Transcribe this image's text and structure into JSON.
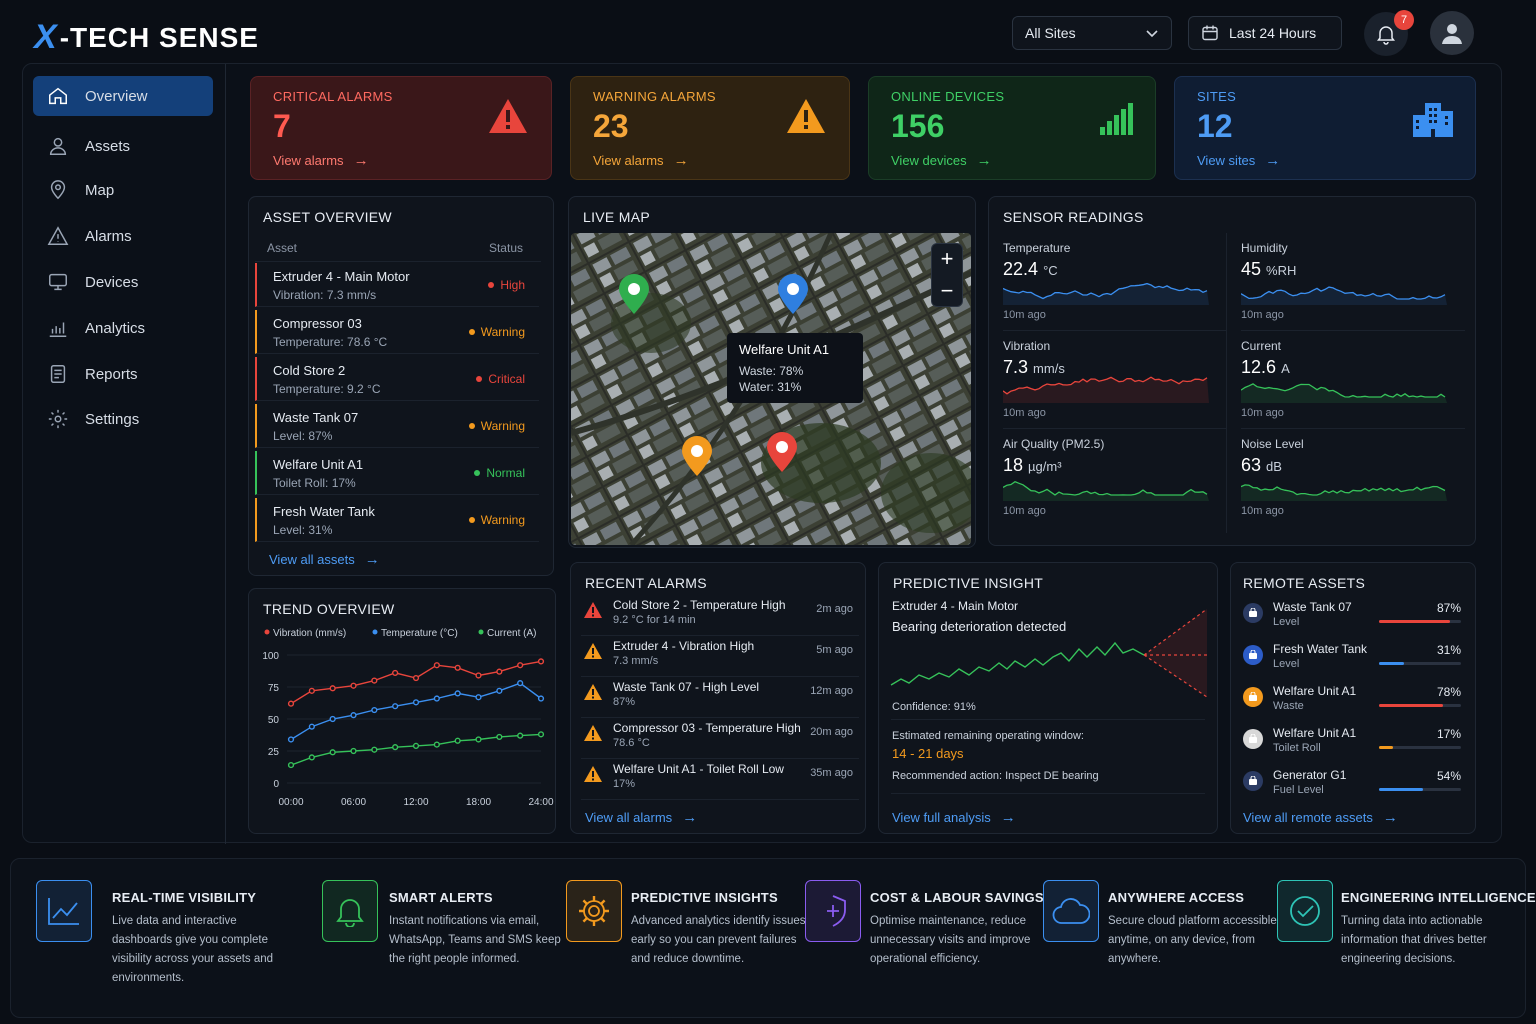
{
  "header": {
    "logo_x": "X",
    "logo_rest": "-TECH SENSE",
    "site_select": "All Sites",
    "time_range": "Last 24 Hours",
    "notif_count": "7"
  },
  "sidebar": {
    "items": [
      {
        "label": "Overview",
        "icon": "home-icon"
      },
      {
        "label": "Assets",
        "icon": "user-icon"
      },
      {
        "label": "Map",
        "icon": "map-pin-icon"
      },
      {
        "label": "Alarms",
        "icon": "warning-icon"
      },
      {
        "label": "Devices",
        "icon": "device-icon"
      },
      {
        "label": "Analytics",
        "icon": "analytics-icon"
      },
      {
        "label": "Reports",
        "icon": "report-icon"
      },
      {
        "label": "Settings",
        "icon": "gear-icon"
      }
    ]
  },
  "kpis": [
    {
      "label": "CRITICAL ALARMS",
      "value": "7",
      "link": "View alarms",
      "color": "#e8453c"
    },
    {
      "label": "WARNING ALARMS",
      "value": "23",
      "link": "View alarms",
      "color": "#f39a1e"
    },
    {
      "label": "ONLINE DEVICES",
      "value": "156",
      "link": "View devices",
      "color": "#36c25a"
    },
    {
      "label": "SITES",
      "value": "12",
      "link": "View sites",
      "color": "#3b8ff0"
    }
  ],
  "asset_overview": {
    "title": "ASSET OVERVIEW",
    "col_asset": "Asset",
    "col_status": "Status",
    "link": "View all assets",
    "rows": [
      {
        "name": "Extruder 4 - Main Motor",
        "sub": "Vibration: 7.3 mm/s",
        "status": "High",
        "color": "#e8453c"
      },
      {
        "name": "Compressor 03",
        "sub": "Temperature: 78.6 °C",
        "status": "Warning",
        "color": "#f39a1e"
      },
      {
        "name": "Cold Store 2",
        "sub": "Temperature: 9.2 °C",
        "status": "Critical",
        "color": "#e8453c"
      },
      {
        "name": "Waste Tank 07",
        "sub": "Level: 87%",
        "status": "Warning",
        "color": "#f39a1e"
      },
      {
        "name": "Welfare Unit A1",
        "sub": "Toilet Roll: 17%",
        "status": "Normal",
        "color": "#36c25a"
      },
      {
        "name": "Fresh Water Tank",
        "sub": "Level: 31%",
        "status": "Warning",
        "color": "#f39a1e"
      }
    ]
  },
  "live_map": {
    "title": "LIVE MAP",
    "tooltip_title": "Welfare Unit A1",
    "tooltip_l1": "Waste: 78%",
    "tooltip_l2": "Water: 31%",
    "zoom_in": "+",
    "zoom_out": "−"
  },
  "sensors": {
    "title": "SENSOR READINGS",
    "items": [
      {
        "label": "Temperature",
        "value": "22.4",
        "unit": "°C",
        "ago": "10m ago",
        "color": "#3b8ff0"
      },
      {
        "label": "Humidity",
        "value": "45",
        "unit": "%RH",
        "ago": "10m ago",
        "color": "#3b8ff0"
      },
      {
        "label": "Vibration",
        "value": "7.3",
        "unit": "mm/s",
        "ago": "10m ago",
        "color": "#e8453c"
      },
      {
        "label": "Current",
        "value": "12.6",
        "unit": "A",
        "ago": "10m ago",
        "color": "#36c25a"
      },
      {
        "label": "Air Quality (PM2.5)",
        "value": "18",
        "unit": "µg/m³",
        "ago": "10m ago",
        "color": "#36c25a"
      },
      {
        "label": "Noise Level",
        "value": "63",
        "unit": "dB",
        "ago": "10m ago",
        "color": "#36c25a"
      }
    ]
  },
  "trend": {
    "title": "TREND OVERVIEW"
  },
  "chart_data": {
    "type": "line",
    "x": [
      "00:00",
      "02:00",
      "04:00",
      "06:00",
      "08:00",
      "10:00",
      "12:00",
      "14:00",
      "16:00",
      "18:00",
      "20:00",
      "22:00",
      "24:00"
    ],
    "x_ticks": [
      "00:00",
      "06:00",
      "12:00",
      "18:00",
      "24:00"
    ],
    "y_ticks": [
      "0",
      "25",
      "50",
      "75",
      "100"
    ],
    "ylim": [
      0,
      100
    ],
    "series": [
      {
        "name": "Vibration (mm/s)",
        "color": "#e8453c",
        "values": [
          62,
          72,
          74,
          76,
          80,
          86,
          82,
          92,
          90,
          84,
          87,
          92,
          95
        ]
      },
      {
        "name": "Temperature (°C)",
        "color": "#3b8ff0",
        "values": [
          34,
          44,
          50,
          53,
          57,
          60,
          63,
          66,
          70,
          67,
          72,
          78,
          66
        ]
      },
      {
        "name": "Current (A)",
        "color": "#36c25a",
        "values": [
          14,
          20,
          24,
          25,
          26,
          28,
          29,
          30,
          33,
          34,
          36,
          37,
          38
        ]
      }
    ]
  },
  "recent_alarms": {
    "title": "RECENT ALARMS",
    "link": "View all alarms",
    "rows": [
      {
        "title": "Cold Store 2 - Temperature High",
        "detail": "9.2 °C for 14 min",
        "time": "2m ago",
        "color": "#e8453c"
      },
      {
        "title": "Extruder 4 - Vibration High",
        "detail": "7.3 mm/s",
        "time": "5m ago",
        "color": "#f39a1e"
      },
      {
        "title": "Waste Tank 07 - High Level",
        "detail": "87%",
        "time": "12m ago",
        "color": "#f39a1e"
      },
      {
        "title": "Compressor 03 - Temperature High",
        "detail": "78.6 °C",
        "time": "20m ago",
        "color": "#f39a1e"
      },
      {
        "title": "Welfare Unit A1 - Toilet Roll Low",
        "detail": "17%",
        "time": "35m ago",
        "color": "#f39a1e"
      }
    ]
  },
  "predictive": {
    "title": "PREDICTIVE INSIGHT",
    "asset": "Extruder 4 - Main Motor",
    "finding": "Bearing deterioration detected",
    "confidence": "Confidence: 91%",
    "window_label": "Estimated remaining operating window:",
    "window_value": "14 - 21 days",
    "action": "Recommended action: Inspect DE bearing",
    "link": "View full analysis"
  },
  "remote": {
    "title": "REMOTE ASSETS",
    "link": "View all remote assets",
    "rows": [
      {
        "name": "Waste Tank 07",
        "sub": "Level",
        "pct": "87%",
        "fill": 0.87,
        "color": "#e8453c",
        "icon_bg": "#2b3b63"
      },
      {
        "name": "Fresh Water Tank",
        "sub": "Level",
        "pct": "31%",
        "fill": 0.31,
        "color": "#3b8ff0",
        "icon_bg": "#2c5cc8"
      },
      {
        "name": "Welfare Unit A1",
        "sub": "Waste",
        "pct": "78%",
        "fill": 0.78,
        "color": "#e8453c",
        "icon_bg": "#f39a1e"
      },
      {
        "name": "Welfare Unit A1",
        "sub": "Toilet Roll",
        "pct": "17%",
        "fill": 0.17,
        "color": "#f39a1e",
        "icon_bg": "#d8d8d8"
      },
      {
        "name": "Generator G1",
        "sub": "Fuel Level",
        "pct": "54%",
        "fill": 0.54,
        "color": "#3b8ff0",
        "icon_bg": "#2b3b63"
      }
    ]
  },
  "features": [
    {
      "title": "REAL-TIME VISIBILITY",
      "desc": "Live data and interactive dashboards give you complete visibility across your assets and environments.",
      "color": "#3b8ff0"
    },
    {
      "title": "SMART ALERTS",
      "desc": "Instant notifications via email, WhatsApp, Teams and SMS keep the right people informed.",
      "color": "#36c25a"
    },
    {
      "title": "PREDICTIVE INSIGHTS",
      "desc": "Advanced analytics identify issues early so you can prevent failures and reduce downtime.",
      "color": "#f39a1e"
    },
    {
      "title": "COST & LABOUR SAVINGS",
      "desc": "Optimise maintenance, reduce unnecessary visits and improve operational efficiency.",
      "color": "#8a5cf0"
    },
    {
      "title": "ANYWHERE ACCESS",
      "desc": "Secure cloud platform accessible anytime, on any device, from anywhere.",
      "color": "#3b8ff0"
    },
    {
      "title": "ENGINEERING INTELLIGENCE",
      "desc": "Turning data into actionable information that drives better engineering decisions.",
      "color": "#2ec4b6"
    }
  ]
}
